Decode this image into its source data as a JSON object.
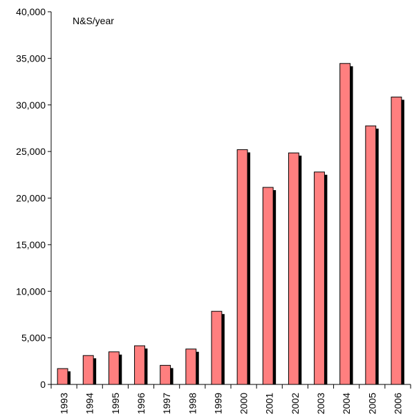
{
  "chart_data": {
    "type": "bar",
    "annotation": "N&S/year",
    "categories": [
      "1993",
      "1994",
      "1995",
      "1996",
      "1997",
      "1998",
      "1999",
      "2000",
      "2001",
      "2002",
      "2003",
      "2004",
      "2005",
      "2006"
    ],
    "values": [
      1700,
      3100,
      3500,
      4150,
      2050,
      3800,
      7850,
      25200,
      21150,
      24850,
      22800,
      34450,
      27750,
      30850
    ],
    "ylim": [
      0,
      40000
    ],
    "yticks": [
      0,
      5000,
      10000,
      15000,
      20000,
      25000,
      30000,
      35000,
      40000
    ],
    "ytick_labels": [
      "0",
      "5,000",
      "10,000",
      "15,000",
      "20,000",
      "25,000",
      "30,000",
      "35,000",
      "40,000"
    ],
    "grid": false,
    "legend": "none",
    "colors": {
      "bar_fill": "#ff7f7f",
      "bar_shadow": "#000000",
      "bar_edge": "#000000",
      "axis": "#000000"
    }
  }
}
